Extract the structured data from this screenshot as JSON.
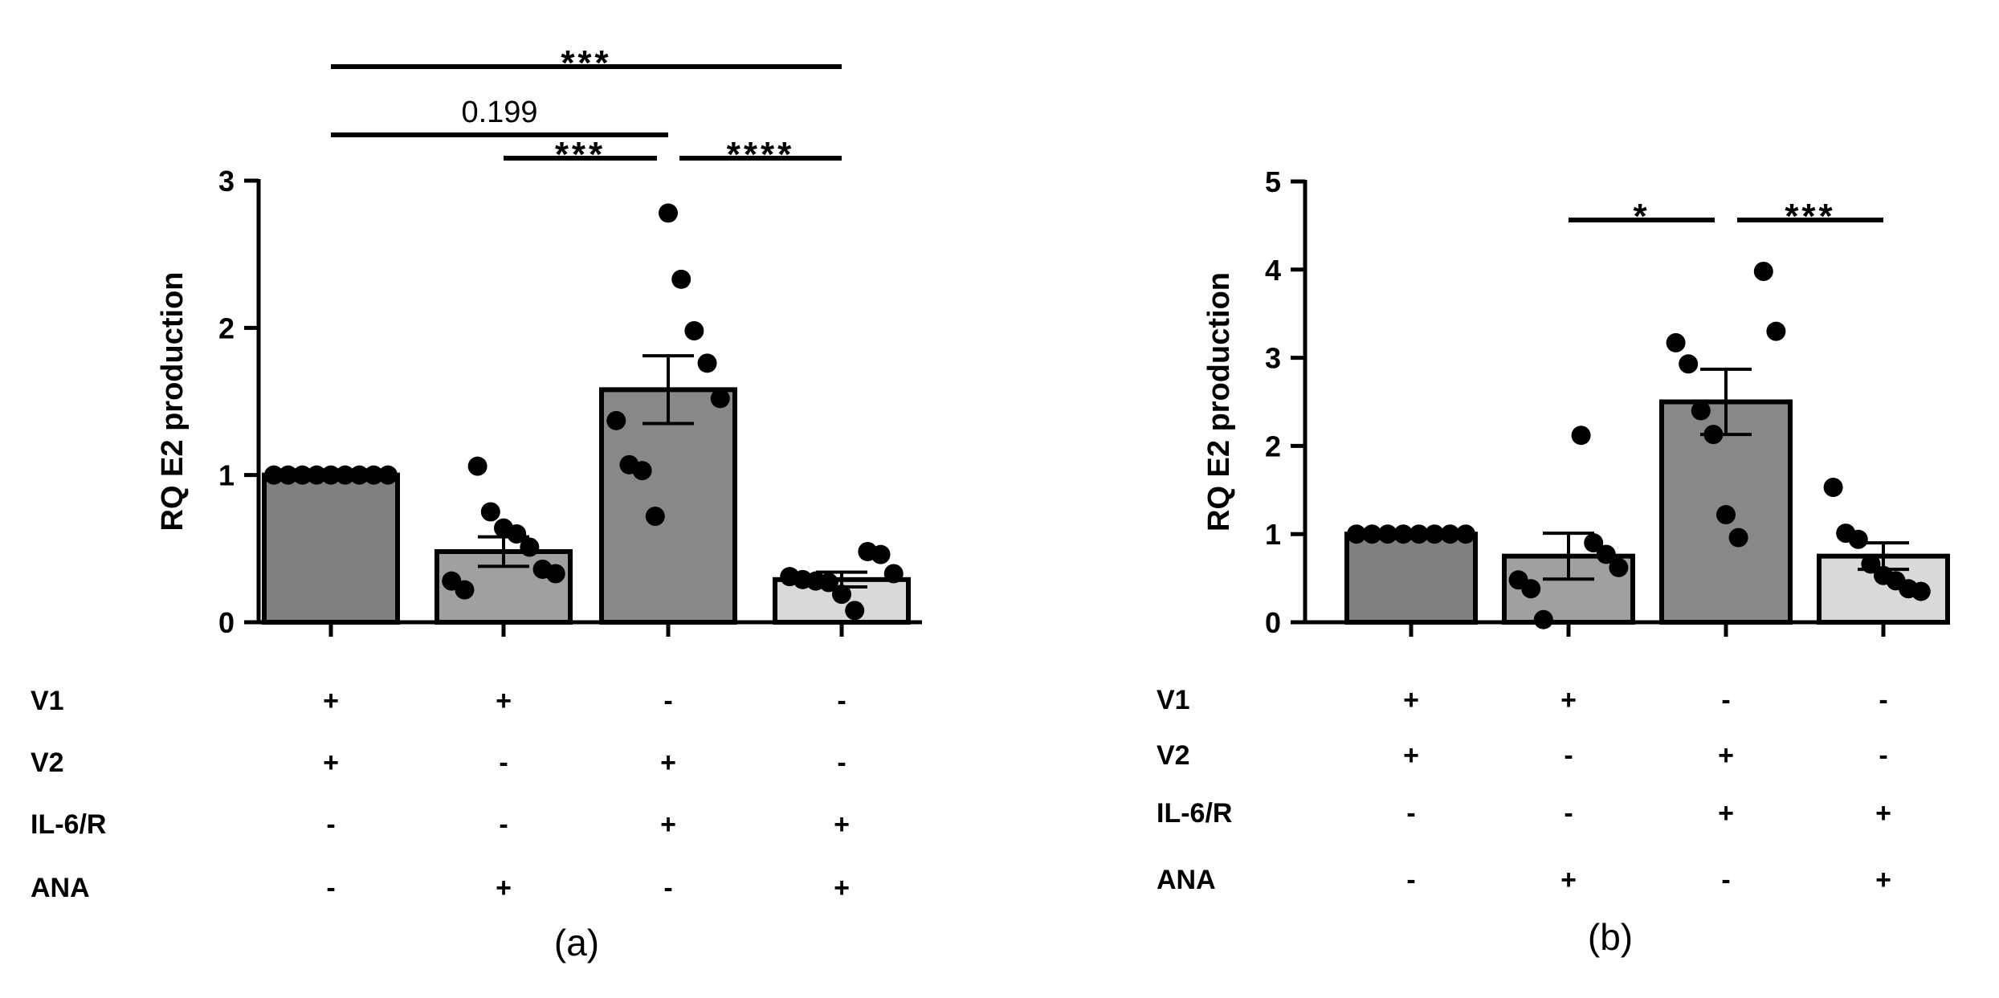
{
  "chart_data": [
    {
      "type": "bar",
      "panel": "(a)",
      "ylabel": "RQ E2 production",
      "ylim": [
        0,
        3
      ],
      "yticks": [
        "0",
        "1",
        "2",
        "3"
      ],
      "categories": [
        "V1+V2",
        "V1+ANA",
        "V2+IL-6/R",
        "IL-6/R+ANA"
      ],
      "values": [
        1.0,
        0.48,
        1.58,
        0.29
      ],
      "errors": [
        0.0,
        0.1,
        0.23,
        0.05
      ],
      "bar_colors": [
        "#808080",
        "#a0a0a0",
        "#888888",
        "#d9d9d9"
      ],
      "points": [
        [
          1,
          1,
          1,
          1,
          1,
          1,
          1,
          1,
          1
        ],
        [
          1.06,
          0.75,
          0.64,
          0.6,
          0.51,
          0.36,
          0.33,
          0.28,
          0.22
        ],
        [
          2.78,
          2.33,
          1.98,
          1.76,
          1.52,
          1.37,
          1.07,
          1.03,
          0.72
        ],
        [
          0.48,
          0.46,
          0.33,
          0.31,
          0.29,
          0.28,
          0.27,
          0.19,
          0.08
        ]
      ],
      "conditions": [
        {
          "label": "V1",
          "signs": [
            "+",
            "+",
            "-",
            "-"
          ]
        },
        {
          "label": "V2",
          "signs": [
            "+",
            "-",
            "+",
            "-"
          ]
        },
        {
          "label": "IL-6/R",
          "signs": [
            "-",
            "-",
            "+",
            "+"
          ]
        },
        {
          "label": "ANA",
          "signs": [
            "-",
            "+",
            "-",
            "+"
          ]
        }
      ],
      "comparisons": [
        {
          "from": 0,
          "to": 3,
          "label": "***",
          "level": 2
        },
        {
          "from": 0,
          "to": 2,
          "label": "0.199",
          "level": 1
        },
        {
          "from": 1,
          "to": 2,
          "label": "***",
          "level": 0
        },
        {
          "from": 2,
          "to": 3,
          "label": "****",
          "level": 0
        }
      ]
    },
    {
      "type": "bar",
      "panel": "(b)",
      "ylabel": "RQ E2 production",
      "ylim": [
        0,
        5
      ],
      "yticks": [
        "0",
        "1",
        "2",
        "3",
        "4",
        "5"
      ],
      "categories": [
        "V1+V2",
        "V1+ANA",
        "V2+IL-6/R",
        "IL-6/R+ANA"
      ],
      "values": [
        1.0,
        0.75,
        2.5,
        0.75
      ],
      "errors": [
        0.0,
        0.26,
        0.37,
        0.15
      ],
      "bar_colors": [
        "#808080",
        "#a0a0a0",
        "#888888",
        "#d9d9d9"
      ],
      "points": [
        [
          1,
          1,
          1,
          1,
          1,
          1,
          1,
          1
        ],
        [
          2.12,
          0.9,
          0.77,
          0.62,
          0.48,
          0.38,
          0.03
        ],
        [
          3.98,
          3.3,
          3.17,
          2.93,
          2.4,
          2.13,
          1.22,
          0.96
        ],
        [
          1.53,
          1.01,
          0.94,
          0.66,
          0.53,
          0.47,
          0.38,
          0.35
        ]
      ],
      "conditions": [
        {
          "label": "V1",
          "signs": [
            "+",
            "+",
            "-",
            "-"
          ]
        },
        {
          "label": "V2",
          "signs": [
            "+",
            "-",
            "+",
            "-"
          ]
        },
        {
          "label": "IL-6/R",
          "signs": [
            "-",
            "-",
            "+",
            "+"
          ]
        },
        {
          "label": "ANA",
          "signs": [
            "-",
            "+",
            "-",
            "+"
          ]
        }
      ],
      "comparisons": [
        {
          "from": 1,
          "to": 2,
          "label": "*",
          "level": 0
        },
        {
          "from": 2,
          "to": 3,
          "label": "***",
          "level": 0
        }
      ]
    }
  ]
}
